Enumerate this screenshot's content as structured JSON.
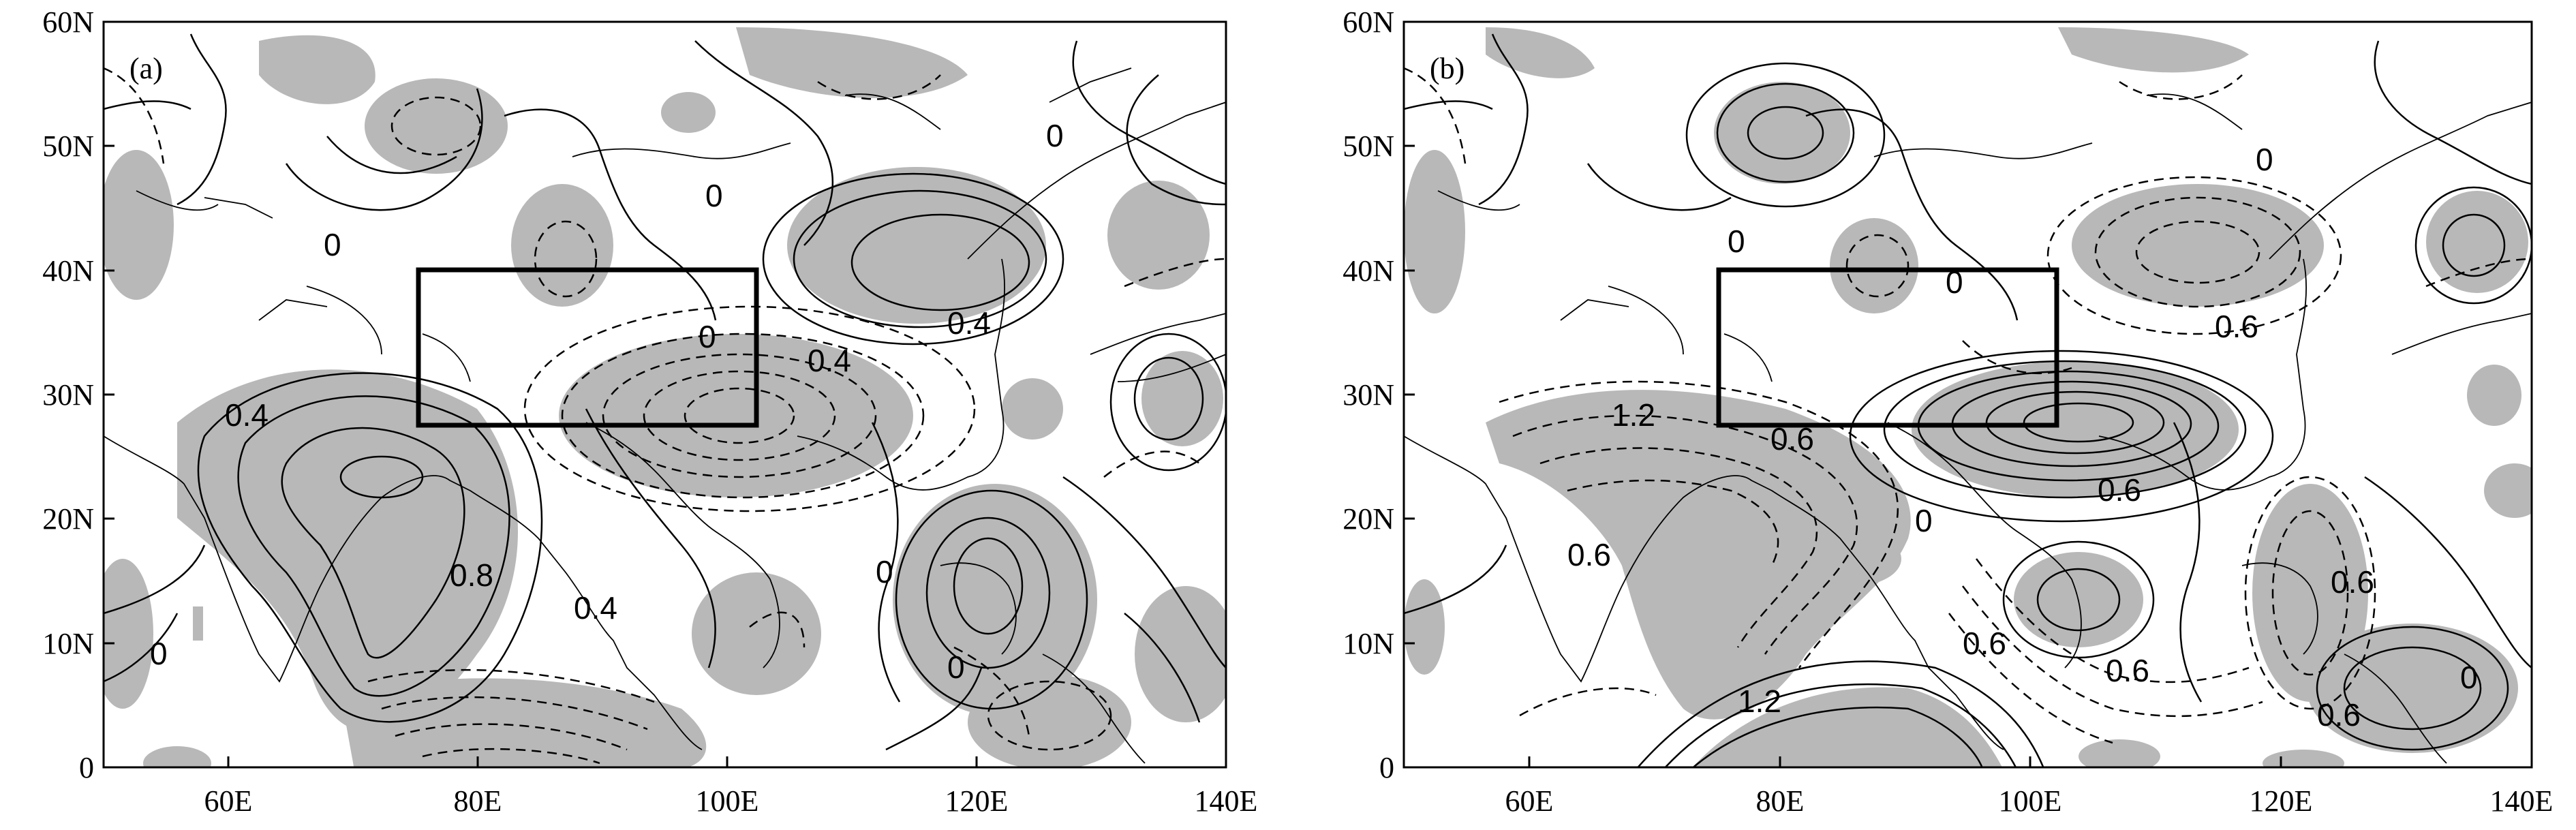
{
  "figure": {
    "panels": [
      {
        "label": "(a)",
        "contour_labels": [
          "0",
          "0",
          "0",
          "0",
          "0.4",
          "0.4",
          "0.4",
          "0.8",
          "0.4",
          "0",
          "0",
          "0"
        ]
      },
      {
        "label": "(b)",
        "contour_labels": [
          "0",
          "0",
          "0",
          "0.6",
          "1.2",
          "0.6",
          "0.6",
          "0.6",
          "0.6",
          "0",
          "1.2",
          "0.6",
          "0.6",
          "0.6",
          "0"
        ]
      }
    ],
    "x_ticks": [
      "60E",
      "80E",
      "100E",
      "120E",
      "140E"
    ],
    "y_ticks": [
      "60N",
      "50N",
      "40N",
      "30N",
      "20N",
      "10N",
      "0"
    ],
    "map_extent": {
      "lon": [
        50,
        140
      ],
      "lat": [
        0,
        60
      ]
    },
    "boxed_region": {
      "lon": [
        75,
        102
      ],
      "lat": [
        27.5,
        40
      ]
    },
    "style": {
      "shading_color": "#b8b8b8",
      "line_color": "#000000"
    }
  }
}
